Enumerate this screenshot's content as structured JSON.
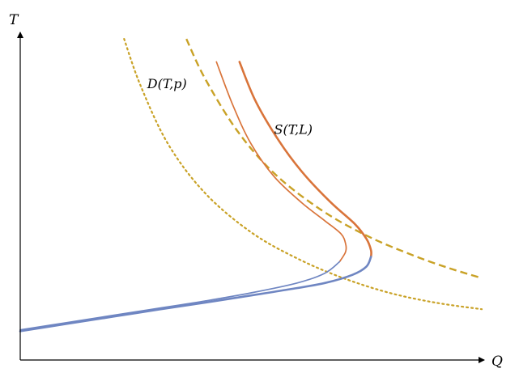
{
  "chart_data": {
    "type": "line",
    "xlabel": "Q",
    "ylabel": "T",
    "xlim": [
      0,
      10
    ],
    "ylim": [
      0,
      10
    ],
    "grid": false,
    "ticks": false,
    "colors": {
      "demand": "#C9A227",
      "supply": "#D9743A",
      "lower": "#6F86C2"
    },
    "annotations": [
      {
        "name": "demand-label",
        "text": "D(T,p)",
        "x": 2.75,
        "y": 8.3
      },
      {
        "name": "supply-label",
        "text": "S(T,L)",
        "x": 5.5,
        "y": 6.9
      }
    ],
    "series": [
      {
        "key": "demand-dotted",
        "style": "dotted",
        "color": "#C9A227",
        "points": [
          [
            2.25,
            9.8
          ],
          [
            2.6,
            8.4
          ],
          [
            3.2,
            6.6
          ],
          [
            4.0,
            5.1
          ],
          [
            5.0,
            3.9
          ],
          [
            6.0,
            3.1
          ],
          [
            7.0,
            2.5
          ],
          [
            8.0,
            2.05
          ],
          [
            9.0,
            1.75
          ],
          [
            10.0,
            1.55
          ]
        ]
      },
      {
        "key": "demand-dashed",
        "style": "dashed",
        "color": "#C9A227",
        "points": [
          [
            3.6,
            9.8
          ],
          [
            4.0,
            8.6
          ],
          [
            4.7,
            7.0
          ],
          [
            5.5,
            5.7
          ],
          [
            6.5,
            4.6
          ],
          [
            7.5,
            3.8
          ],
          [
            8.5,
            3.2
          ],
          [
            9.3,
            2.8
          ],
          [
            10.0,
            2.5
          ]
        ]
      },
      {
        "key": "supply-thin-upper",
        "style": "solid",
        "color": "#D9743A",
        "points": [
          [
            4.25,
            9.1
          ],
          [
            4.6,
            7.8
          ],
          [
            5.0,
            6.6
          ],
          [
            5.5,
            5.6
          ],
          [
            6.1,
            4.8
          ],
          [
            6.6,
            4.25
          ],
          [
            6.95,
            3.85
          ],
          [
            7.05,
            3.55
          ],
          [
            7.05,
            3.3
          ],
          [
            6.92,
            3.0
          ]
        ]
      },
      {
        "key": "supply-thin-lower",
        "style": "solid",
        "color": "#6F86C2",
        "points": [
          [
            6.92,
            3.0
          ],
          [
            6.6,
            2.65
          ],
          [
            6.0,
            2.35
          ],
          [
            5.0,
            2.05
          ],
          [
            4.0,
            1.8
          ],
          [
            3.0,
            1.58
          ],
          [
            2.0,
            1.36
          ],
          [
            1.0,
            1.14
          ],
          [
            0.0,
            0.92
          ]
        ]
      },
      {
        "key": "supply-thick-upper",
        "style": "solid",
        "color": "#D9743A",
        "points": [
          [
            4.75,
            9.1
          ],
          [
            5.1,
            7.9
          ],
          [
            5.6,
            6.7
          ],
          [
            6.1,
            5.75
          ],
          [
            6.7,
            4.85
          ],
          [
            7.25,
            4.15
          ],
          [
            7.5,
            3.7
          ],
          [
            7.6,
            3.35
          ],
          [
            7.6,
            3.15
          ]
        ]
      },
      {
        "key": "supply-thick-lower",
        "style": "solid",
        "color": "#6F86C2",
        "points": [
          [
            7.6,
            3.15
          ],
          [
            7.5,
            2.85
          ],
          [
            7.2,
            2.6
          ],
          [
            6.6,
            2.35
          ],
          [
            5.8,
            2.15
          ],
          [
            5.0,
            1.97
          ],
          [
            4.0,
            1.75
          ],
          [
            3.0,
            1.54
          ],
          [
            2.0,
            1.32
          ],
          [
            1.0,
            1.1
          ],
          [
            0.0,
            0.88
          ]
        ]
      }
    ]
  }
}
